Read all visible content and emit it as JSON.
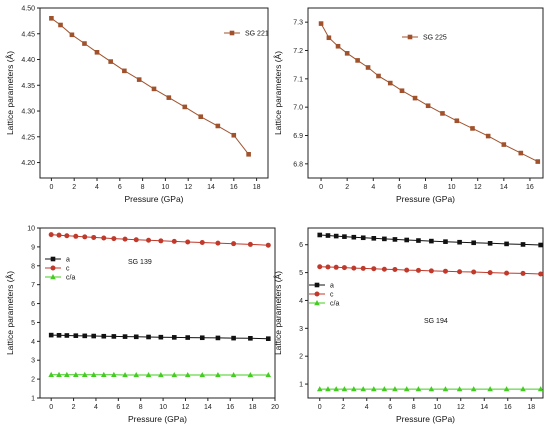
{
  "chart_data": [
    {
      "type": "line",
      "xlabel": "Pressure (GPa)",
      "ylabel": "Lattice parameters (Å)",
      "xlim": [
        -1,
        19
      ],
      "ylim": [
        4.17,
        4.5
      ],
      "xticks": [
        "0",
        "2",
        "4",
        "6",
        "8",
        "10",
        "12",
        "14",
        "16",
        "18"
      ],
      "yticks": [
        "4.20",
        "4.25",
        "4.30",
        "4.35",
        "4.40",
        "4.45",
        "4.50"
      ],
      "legend_position": "top-right",
      "series": [
        {
          "name": "SG 221",
          "color": "#a0522d",
          "marker": "square",
          "x": [
            0,
            0.8,
            1.8,
            2.9,
            4.0,
            5.2,
            6.4,
            7.7,
            9.0,
            10.3,
            11.7,
            13.1,
            14.6,
            16.0,
            17.3
          ],
          "y": [
            4.48,
            4.467,
            4.448,
            4.431,
            4.414,
            4.396,
            4.378,
            4.361,
            4.343,
            4.326,
            4.308,
            4.289,
            4.271,
            4.253,
            4.216
          ]
        }
      ]
    },
    {
      "type": "line",
      "xlabel": "Pressure (GPa)",
      "ylabel": "Lattice parameters (Å)",
      "xlim": [
        -1,
        17
      ],
      "ylim": [
        6.75,
        7.35
      ],
      "xticks": [
        "0",
        "2",
        "4",
        "6",
        "8",
        "10",
        "12",
        "14",
        "16"
      ],
      "yticks": [
        "6.8",
        "6.9",
        "7.0",
        "7.1",
        "7.2",
        "7.3"
      ],
      "legend_position": "top-right",
      "series": [
        {
          "name": "SG 225",
          "color": "#a0522d",
          "marker": "square",
          "x": [
            0,
            0.6,
            1.3,
            2.0,
            2.8,
            3.6,
            4.4,
            5.3,
            6.2,
            7.2,
            8.2,
            9.3,
            10.4,
            11.6,
            12.8,
            14.0,
            15.3,
            16.6
          ],
          "y": [
            7.295,
            7.245,
            7.215,
            7.19,
            7.165,
            7.14,
            7.11,
            7.085,
            7.058,
            7.032,
            7.005,
            6.978,
            6.952,
            6.925,
            6.898,
            6.868,
            6.838,
            6.808
          ]
        }
      ]
    },
    {
      "type": "line",
      "xlabel": "Pressure (GPa)",
      "ylabel": "Lattice parameters (Å)",
      "xlim": [
        -1,
        20
      ],
      "ylim": [
        1,
        10
      ],
      "xticks": [
        "0",
        "2",
        "4",
        "6",
        "8",
        "10",
        "12",
        "14",
        "16",
        "18",
        "20"
      ],
      "yticks": [
        "1",
        "2",
        "3",
        "4",
        "5",
        "6",
        "7",
        "8",
        "9",
        "10"
      ],
      "legend_position": "top-left",
      "annotation": "SG 139",
      "series": [
        {
          "name": "a",
          "color": "#111111",
          "marker": "square",
          "x": [
            0,
            0.7,
            1.4,
            2.2,
            3.0,
            3.8,
            4.7,
            5.6,
            6.6,
            7.6,
            8.7,
            9.8,
            11.0,
            12.2,
            13.5,
            14.9,
            16.3,
            17.8,
            19.4
          ],
          "y": [
            4.33,
            4.32,
            4.31,
            4.3,
            4.29,
            4.28,
            4.27,
            4.26,
            4.25,
            4.24,
            4.23,
            4.22,
            4.21,
            4.2,
            4.19,
            4.18,
            4.17,
            4.16,
            4.14
          ]
        },
        {
          "name": "c",
          "color": "#c0392b",
          "marker": "circle",
          "x": [
            0,
            0.7,
            1.4,
            2.2,
            3.0,
            3.8,
            4.7,
            5.6,
            6.6,
            7.6,
            8.7,
            9.8,
            11.0,
            12.2,
            13.5,
            14.9,
            16.3,
            17.8,
            19.4
          ],
          "y": [
            9.65,
            9.62,
            9.59,
            9.56,
            9.53,
            9.5,
            9.47,
            9.44,
            9.41,
            9.38,
            9.35,
            9.32,
            9.29,
            9.26,
            9.23,
            9.2,
            9.17,
            9.13,
            9.09
          ]
        },
        {
          "name": "c/a",
          "color": "#44cc22",
          "marker": "triangle",
          "x": [
            0,
            0.7,
            1.4,
            2.2,
            3.0,
            3.8,
            4.7,
            5.6,
            6.6,
            7.6,
            8.7,
            9.8,
            11.0,
            12.2,
            13.5,
            14.9,
            16.3,
            17.8,
            19.4
          ],
          "y": [
            2.23,
            2.23,
            2.23,
            2.23,
            2.23,
            2.23,
            2.23,
            2.23,
            2.22,
            2.22,
            2.22,
            2.22,
            2.22,
            2.22,
            2.22,
            2.22,
            2.22,
            2.22,
            2.22
          ]
        }
      ]
    },
    {
      "type": "line",
      "xlabel": "Pressure (GPa)",
      "ylabel": "Lattice parameters (Å)",
      "xlim": [
        -1,
        19
      ],
      "ylim": [
        0.5,
        6.6
      ],
      "xticks": [
        "0",
        "2",
        "4",
        "6",
        "8",
        "10",
        "12",
        "14",
        "16",
        "18"
      ],
      "yticks": [
        "1",
        "2",
        "3",
        "4",
        "5",
        "6"
      ],
      "legend_position": "top-left",
      "annotation": "SG 194",
      "series": [
        {
          "name": "a",
          "color": "#111111",
          "marker": "square",
          "x": [
            0,
            0.7,
            1.4,
            2.1,
            2.9,
            3.7,
            4.6,
            5.5,
            6.4,
            7.4,
            8.4,
            9.5,
            10.7,
            11.9,
            13.1,
            14.5,
            15.9,
            17.3,
            18.8
          ],
          "y": [
            6.35,
            6.33,
            6.31,
            6.29,
            6.27,
            6.25,
            6.23,
            6.21,
            6.19,
            6.17,
            6.15,
            6.13,
            6.11,
            6.09,
            6.07,
            6.05,
            6.03,
            6.01,
            5.99
          ]
        },
        {
          "name": "c",
          "color": "#c0392b",
          "marker": "circle",
          "x": [
            0,
            0.7,
            1.4,
            2.1,
            2.9,
            3.7,
            4.6,
            5.5,
            6.4,
            7.4,
            8.4,
            9.5,
            10.7,
            11.9,
            13.1,
            14.5,
            15.9,
            17.3,
            18.8
          ],
          "y": [
            5.21,
            5.2,
            5.19,
            5.18,
            5.16,
            5.15,
            5.14,
            5.12,
            5.11,
            5.09,
            5.08,
            5.06,
            5.05,
            5.03,
            5.02,
            5.0,
            4.98,
            4.97,
            4.95
          ]
        },
        {
          "name": "c/a",
          "color": "#44cc22",
          "marker": "triangle",
          "x": [
            0,
            0.7,
            1.4,
            2.1,
            2.9,
            3.7,
            4.6,
            5.5,
            6.4,
            7.4,
            8.4,
            9.5,
            10.7,
            11.9,
            13.1,
            14.5,
            15.9,
            17.3,
            18.8
          ],
          "y": [
            0.82,
            0.82,
            0.82,
            0.82,
            0.82,
            0.82,
            0.82,
            0.82,
            0.82,
            0.82,
            0.82,
            0.82,
            0.82,
            0.82,
            0.82,
            0.82,
            0.82,
            0.82,
            0.82
          ]
        }
      ]
    }
  ]
}
